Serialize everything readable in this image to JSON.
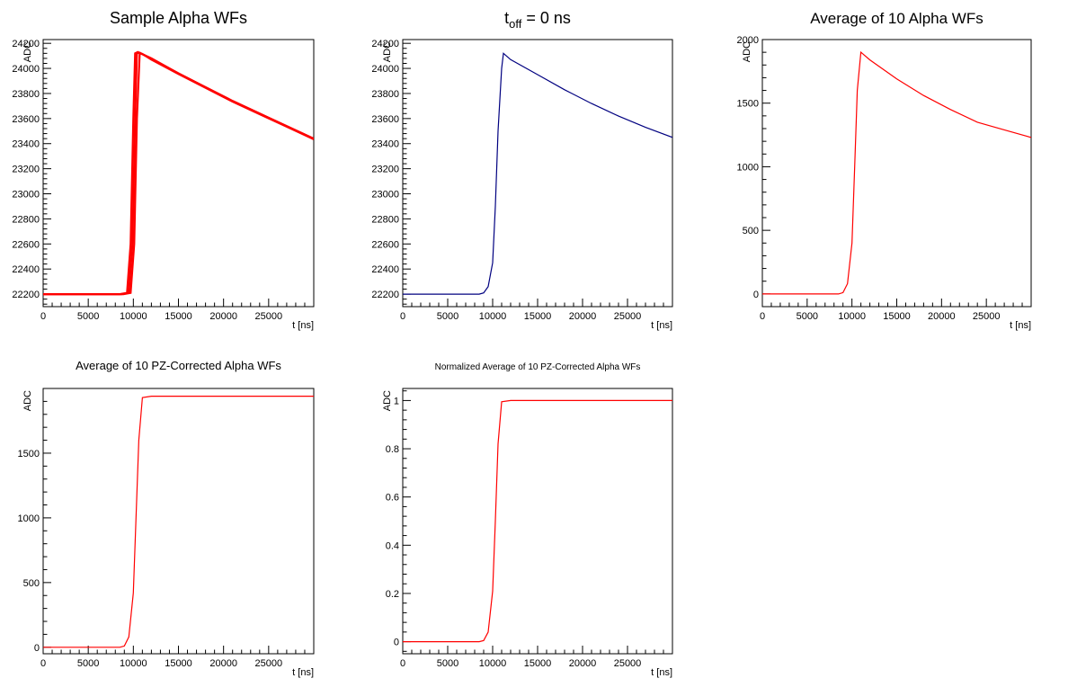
{
  "chart_data": [
    {
      "type": "line",
      "title": "Sample Alpha WFs",
      "xlabel": "t [ns]",
      "ylabel": "ADC",
      "xlim": [
        0,
        30000
      ],
      "ylim": [
        22100,
        24230
      ],
      "xticks": [
        0,
        5000,
        10000,
        15000,
        20000,
        25000
      ],
      "yticks": [
        22200,
        22400,
        22600,
        22800,
        23000,
        23200,
        23400,
        23600,
        23800,
        24000,
        24200
      ],
      "line_color": "#ff0000",
      "series": [
        {
          "rise_ns": 9300,
          "peak_ns": 10200,
          "x": [
            0,
            8500,
            9300,
            9700,
            10000,
            10200,
            10500,
            12000,
            15000,
            18000,
            21000,
            24000,
            27000,
            30000
          ],
          "y": [
            22200,
            22200,
            22210,
            22600,
            23600,
            24120,
            24130,
            24080,
            23960,
            23850,
            23740,
            23640,
            23540,
            23440
          ]
        },
        {
          "rise_ns": 9500,
          "peak_ns": 10400,
          "x": [
            0,
            8700,
            9500,
            9900,
            10200,
            10400,
            10700,
            12000,
            15000,
            18000,
            21000,
            24000,
            27000,
            30000
          ],
          "y": [
            22200,
            22200,
            22210,
            22600,
            23600,
            24120,
            24125,
            24075,
            23960,
            23850,
            23740,
            23640,
            23540,
            23440
          ]
        },
        {
          "rise_ns": 9700,
          "peak_ns": 10700,
          "x": [
            0,
            8900,
            9700,
            10100,
            10400,
            10700,
            11000,
            12000,
            15000,
            18000,
            21000,
            24000,
            27000,
            30000
          ],
          "y": [
            22200,
            22200,
            22210,
            22600,
            23600,
            24120,
            24115,
            24070,
            23955,
            23845,
            23735,
            23635,
            23535,
            23435
          ]
        }
      ]
    },
    {
      "type": "line",
      "title_main": "t",
      "title_sub": "off",
      "title_rest": " = 0 ns",
      "xlabel": "t [ns]",
      "ylabel": "ADC",
      "xlim": [
        0,
        30000
      ],
      "ylim": [
        22100,
        24230
      ],
      "xticks": [
        0,
        5000,
        10000,
        15000,
        20000,
        25000
      ],
      "yticks": [
        22200,
        22400,
        22600,
        22800,
        23000,
        23200,
        23400,
        23600,
        23800,
        24000,
        24200
      ],
      "line_color": "#000080",
      "series": [
        {
          "x": [
            0,
            8500,
            9000,
            9500,
            10000,
            10300,
            10600,
            11000,
            11200,
            12000,
            15000,
            18000,
            21000,
            24000,
            27000,
            30000
          ],
          "y": [
            22200,
            22200,
            22210,
            22260,
            22450,
            22900,
            23500,
            24000,
            24120,
            24070,
            23950,
            23830,
            23720,
            23620,
            23530,
            23450
          ]
        }
      ]
    },
    {
      "type": "line",
      "title": "Average of 10 Alpha WFs",
      "xlabel": "t [ns]",
      "ylabel": "ADC",
      "xlim": [
        0,
        30000
      ],
      "ylim": [
        -100,
        2000
      ],
      "xticks": [
        0,
        5000,
        10000,
        15000,
        20000,
        25000
      ],
      "yticks": [
        0,
        500,
        1000,
        1500,
        2000
      ],
      "line_color": "#ff0000",
      "series": [
        {
          "x": [
            0,
            8500,
            9000,
            9500,
            10000,
            10300,
            10600,
            11000,
            12000,
            15000,
            18000,
            21000,
            24000,
            27000,
            30000
          ],
          "y": [
            0,
            0,
            10,
            80,
            400,
            1000,
            1600,
            1900,
            1840,
            1690,
            1560,
            1450,
            1350,
            1290,
            1230
          ]
        }
      ]
    },
    {
      "type": "line",
      "title": "Average of 10 PZ-Corrected Alpha WFs",
      "xlabel": "t [ns]",
      "ylabel": "ADC",
      "xlim": [
        0,
        30000
      ],
      "ylim": [
        -50,
        2000
      ],
      "xticks": [
        0,
        5000,
        10000,
        15000,
        20000,
        25000
      ],
      "yticks": [
        0,
        500,
        1000,
        1500
      ],
      "line_color": "#ff0000",
      "series": [
        {
          "x": [
            0,
            8500,
            9000,
            9500,
            10000,
            10300,
            10600,
            11000,
            12000,
            15000,
            20000,
            25000,
            30000
          ],
          "y": [
            0,
            0,
            10,
            80,
            420,
            1000,
            1600,
            1930,
            1940,
            1940,
            1940,
            1940,
            1940
          ]
        }
      ]
    },
    {
      "type": "line",
      "title": "Normalized Average of 10 PZ-Corrected Alpha WFs",
      "xlabel": "t [ns]",
      "ylabel": "ADC",
      "xlim": [
        0,
        30000
      ],
      "ylim": [
        -0.05,
        1.05
      ],
      "xticks": [
        0,
        5000,
        10000,
        15000,
        20000,
        25000
      ],
      "yticks": [
        0,
        0.2,
        0.4,
        0.6,
        0.8,
        1
      ],
      "line_color": "#ff0000",
      "series": [
        {
          "x": [
            0,
            8500,
            9000,
            9500,
            10000,
            10300,
            10600,
            11000,
            12000,
            15000,
            20000,
            25000,
            30000
          ],
          "y": [
            0,
            0,
            0.005,
            0.04,
            0.21,
            0.5,
            0.82,
            0.995,
            1,
            1,
            1,
            1,
            1
          ]
        }
      ]
    }
  ]
}
